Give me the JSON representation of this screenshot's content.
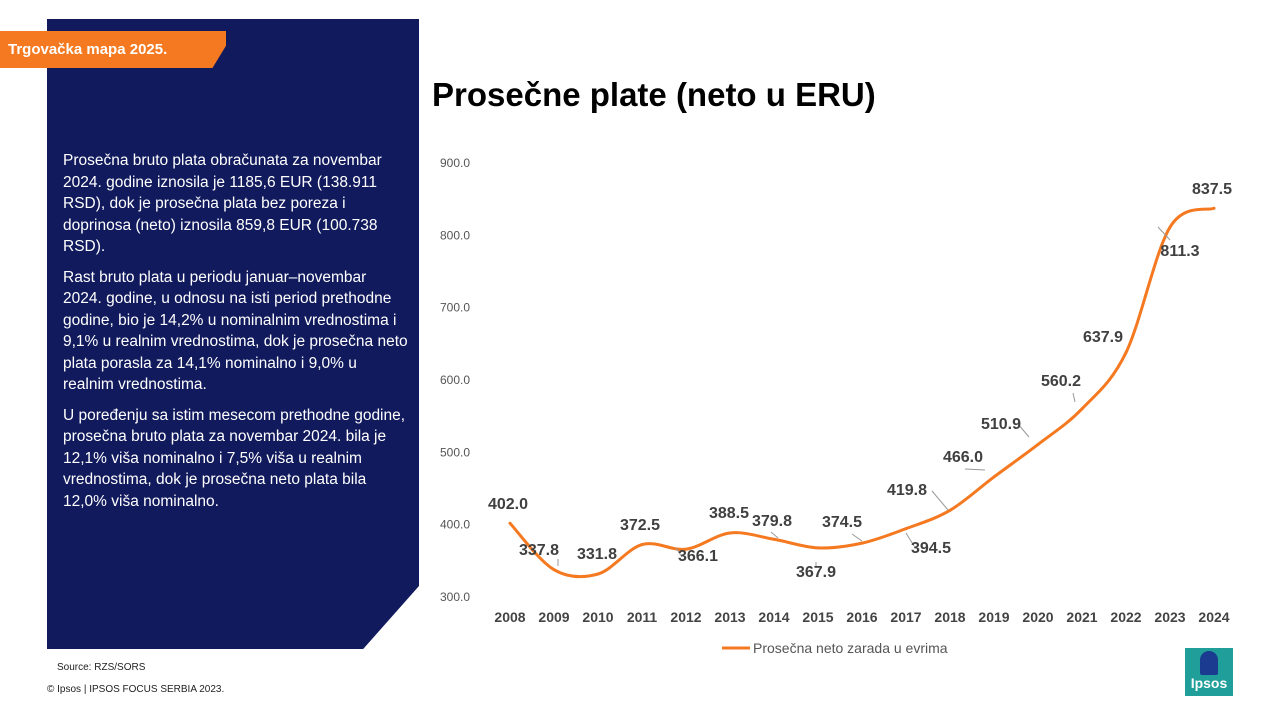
{
  "header": {
    "tag": "Trgovačka mapa 2025."
  },
  "panel": {
    "paragraphs": [
      "Prosečna bruto plata obračunata za novembar 2024. godine iznosila je 1185,6 EUR (138.911 RSD), dok je prosečna plata bez poreza i doprinosa (neto) iznosila 859,8 EUR (100.738 RSD).",
      "Rast bruto plata u periodu januar–novembar 2024. godine, u odnosu na isti period prethodne godine, bio je 14,2% u nominalnim vrednostima i 9,1% u realnim vrednostima, dok je prosečna neto plata porasla za 14,1% nominalno i 9,0% u realnim vrednostima.",
      "U poređenju sa istim mesecom prethodne godine, prosečna bruto plata za novembar 2024. bila je 12,1% viša nominalno i 7,5% viša u realnim vrednostima, dok je prosečna neto plata bila 12,0% viša nominalno."
    ]
  },
  "footer": {
    "source": "Source: RZS/SORS",
    "copyright": "© Ipsos | IPSOS FOCUS SERBIA 2023.",
    "logo_text": "Ipsos"
  },
  "colors": {
    "panel": "#111a5c",
    "accent": "#f47920",
    "line": "#f47920",
    "logo": "#1f9e9a"
  },
  "chart_data": {
    "type": "line",
    "title": "Prosečne plate (neto u ERU)",
    "xlabel": "",
    "ylabel": "",
    "ylim": [
      300,
      900
    ],
    "yticks": [
      300,
      400,
      500,
      600,
      700,
      800,
      900
    ],
    "ytick_labels": [
      "300.0",
      "400.0",
      "500.0",
      "600.0",
      "700.0",
      "800.0",
      "900.0"
    ],
    "grid": false,
    "legend": "bottom",
    "categories": [
      "2008",
      "2009",
      "2010",
      "2011",
      "2012",
      "2013",
      "2014",
      "2015",
      "2016",
      "2017",
      "2018",
      "2019",
      "2020",
      "2021",
      "2022",
      "2023",
      "2024"
    ],
    "series": [
      {
        "name": "Prosečna neto zarada u evrima",
        "values": [
          402.0,
          337.8,
          331.8,
          372.5,
          366.1,
          388.5,
          379.8,
          367.9,
          374.5,
          394.5,
          419.8,
          466.0,
          510.9,
          560.2,
          637.9,
          811.3,
          837.5
        ],
        "labels": [
          "402.0",
          "337.8",
          "331.8",
          "372.5",
          "366.1",
          "388.5",
          "379.8",
          "367.9",
          "374.5",
          "394.5",
          "419.8",
          "466.0",
          "510.9",
          "560.2",
          "637.9",
          "811.3",
          "837.5"
        ]
      }
    ]
  }
}
